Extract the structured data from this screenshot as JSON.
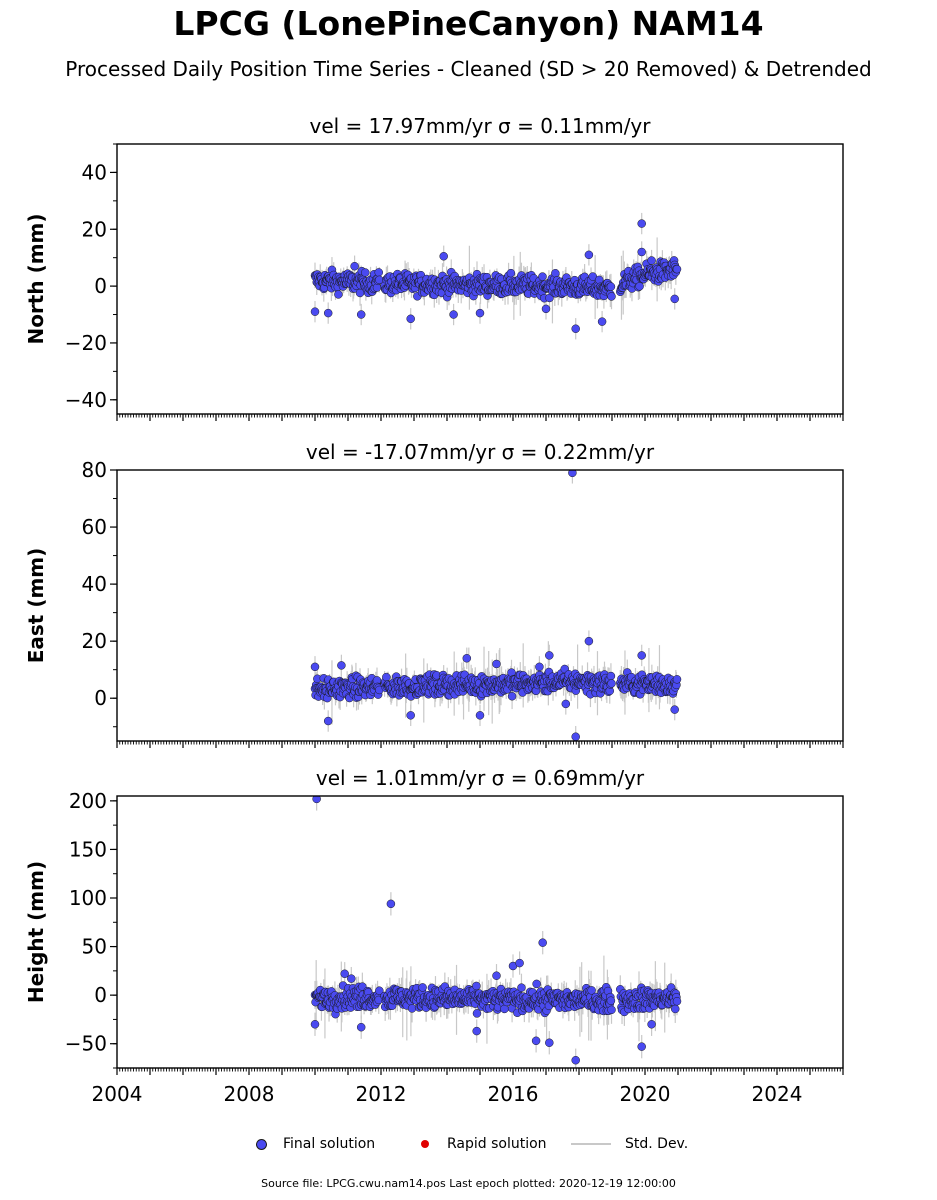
{
  "header": {
    "title": "LPCG (LonePineCanyon) NAM14",
    "subtitle": "Processed Daily Position Time Series - Cleaned (SD > 20 Removed) & Detrended"
  },
  "legend": {
    "final": "Final solution",
    "rapid": "Rapid solution",
    "stddev": "Std. Dev."
  },
  "footer": {
    "text": "Source file: LPCG.cwu.nam14.pos  Last epoch plotted: 2020-12-19 12:00:00"
  },
  "colors": {
    "final": "#4a4af0",
    "rapid": "#e00000",
    "stddev": "#c8c8c8",
    "marker_edge": "#1a1a1a"
  },
  "chart_data": [
    {
      "type": "scatter",
      "title": "vel = 17.97mm/yr   σ = 0.11mm/yr",
      "ylabel": "North (mm)",
      "xlim": [
        2004,
        2026
      ],
      "ylim": [
        -45,
        50
      ],
      "yticks": [
        -40,
        -20,
        0,
        20,
        40
      ],
      "xticks": [
        2004,
        2008,
        2012,
        2016,
        2020,
        2024
      ],
      "data_span": [
        2010.0,
        2020.97
      ],
      "gaps": [
        [
          2011.95,
          2012.1
        ],
        [
          2019.0,
          2019.25
        ]
      ],
      "outliers": [
        [
          2010.0,
          -9
        ],
        [
          2010.4,
          -9.5
        ],
        [
          2011.4,
          -10
        ],
        [
          2013.9,
          10.5
        ],
        [
          2011.2,
          7
        ],
        [
          2012.9,
          -11.5
        ],
        [
          2014.2,
          -10
        ],
        [
          2015.0,
          -9.5
        ],
        [
          2017.9,
          -15
        ],
        [
          2018.3,
          11
        ],
        [
          2018.7,
          -12.5
        ],
        [
          2019.9,
          22
        ],
        [
          2020.9,
          -4.5
        ],
        [
          2017.0,
          -8
        ],
        [
          2019.9,
          12
        ],
        [
          2020.2,
          9
        ]
      ],
      "series": [
        {
          "name": "Final solution",
          "trend": [
            [
              2010.0,
              2
            ],
            [
              2012.0,
              1
            ],
            [
              2017.5,
              0
            ],
            [
              2019.0,
              -1
            ],
            [
              2019.3,
              1
            ],
            [
              2020.0,
              4
            ],
            [
              2021.0,
              6
            ]
          ],
          "spread": 2.5
        }
      ]
    },
    {
      "type": "scatter",
      "title": "vel = -17.07mm/yr   σ = 0.22mm/yr",
      "ylabel": "East (mm)",
      "xlim": [
        2004,
        2026
      ],
      "ylim": [
        -15,
        80
      ],
      "yticks": [
        0,
        20,
        40,
        60,
        80
      ],
      "xticks": [
        2004,
        2008,
        2012,
        2016,
        2020,
        2024
      ],
      "data_span": [
        2010.0,
        2020.97
      ],
      "gaps": [
        [
          2011.95,
          2012.1
        ],
        [
          2019.0,
          2019.25
        ]
      ],
      "outliers": [
        [
          2017.8,
          79
        ],
        [
          2017.9,
          -13.5
        ],
        [
          2018.3,
          20
        ],
        [
          2010.0,
          11
        ],
        [
          2010.8,
          11.5
        ],
        [
          2012.9,
          -6
        ],
        [
          2014.6,
          14
        ],
        [
          2015.5,
          12
        ],
        [
          2015.0,
          -6
        ],
        [
          2016.8,
          11
        ],
        [
          2017.1,
          15
        ],
        [
          2017.6,
          -2
        ],
        [
          2019.9,
          15
        ],
        [
          2020.9,
          -4
        ],
        [
          2010.4,
          -8
        ]
      ],
      "series": [
        {
          "name": "Final solution",
          "trend": [
            [
              2010.0,
              3
            ],
            [
              2012.0,
              4
            ],
            [
              2016.0,
              5
            ],
            [
              2018.0,
              6
            ],
            [
              2019.0,
              5
            ],
            [
              2021.0,
              5
            ]
          ],
          "spread": 2.5
        }
      ]
    },
    {
      "type": "scatter",
      "title": "vel = 1.01mm/yr   σ = 0.69mm/yr",
      "ylabel": "Height (mm)",
      "xlim": [
        2004,
        2026
      ],
      "ylim": [
        -75,
        205
      ],
      "yticks": [
        -50,
        0,
        50,
        100,
        150,
        200
      ],
      "xticks": [
        2004,
        2008,
        2012,
        2016,
        2020,
        2024
      ],
      "data_span": [
        2010.0,
        2020.97
      ],
      "gaps": [
        [
          2011.95,
          2012.1
        ],
        [
          2019.0,
          2019.25
        ]
      ],
      "outliers": [
        [
          2010.05,
          202
        ],
        [
          2012.3,
          94
        ],
        [
          2016.9,
          54
        ],
        [
          2016.0,
          30
        ],
        [
          2016.2,
          33
        ],
        [
          2016.7,
          -47
        ],
        [
          2017.1,
          -49
        ],
        [
          2017.9,
          -67
        ],
        [
          2019.9,
          -53
        ],
        [
          2010.0,
          -30
        ],
        [
          2011.4,
          -33
        ],
        [
          2014.9,
          -37
        ],
        [
          2010.9,
          22
        ],
        [
          2015.5,
          20
        ],
        [
          2011.1,
          17
        ],
        [
          2020.2,
          -30
        ]
      ],
      "series": [
        {
          "name": "Final solution",
          "trend": [
            [
              2010.0,
              -3
            ],
            [
              2012.0,
              -2
            ],
            [
              2016.0,
              -5
            ],
            [
              2019.0,
              -5
            ],
            [
              2021.0,
              -3
            ]
          ],
          "spread": 8
        }
      ]
    }
  ]
}
